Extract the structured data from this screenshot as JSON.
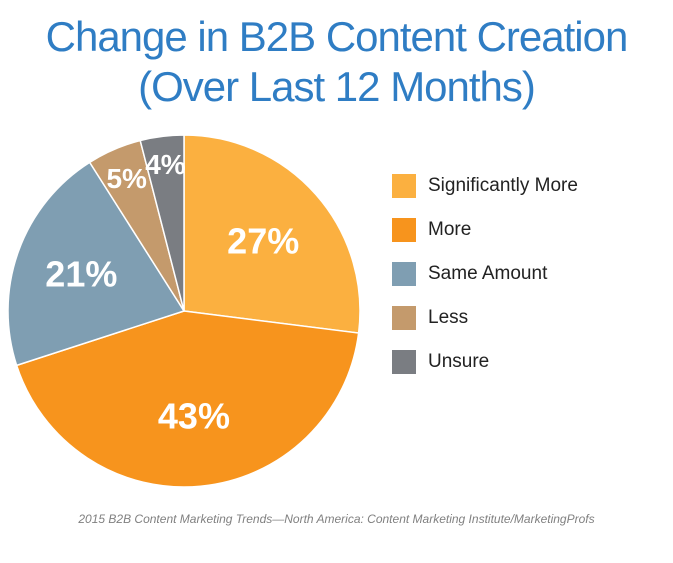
{
  "title_line1": "Change in B2B Content Creation",
  "title_line2": "(Over Last 12 Months)",
  "source": "2015 B2B Content Marketing Trends—North America: Content Marketing Institute/MarketingProfs",
  "chart_data": {
    "type": "pie",
    "title": "Change in B2B Content Creation (Over Last 12 Months)",
    "legend_position": "right",
    "slices": [
      {
        "name": "Significantly More",
        "value": 27,
        "label": "27%",
        "color": "#fbb040"
      },
      {
        "name": "More",
        "value": 43,
        "label": "43%",
        "color": "#f7941d"
      },
      {
        "name": "Same Amount",
        "value": 21,
        "label": "21%",
        "color": "#7f9eb2"
      },
      {
        "name": "Less",
        "value": 5,
        "label": "5%",
        "color": "#c49a6c"
      },
      {
        "name": "Unsure",
        "value": 4,
        "label": "4%",
        "color": "#7a7d82"
      }
    ]
  }
}
